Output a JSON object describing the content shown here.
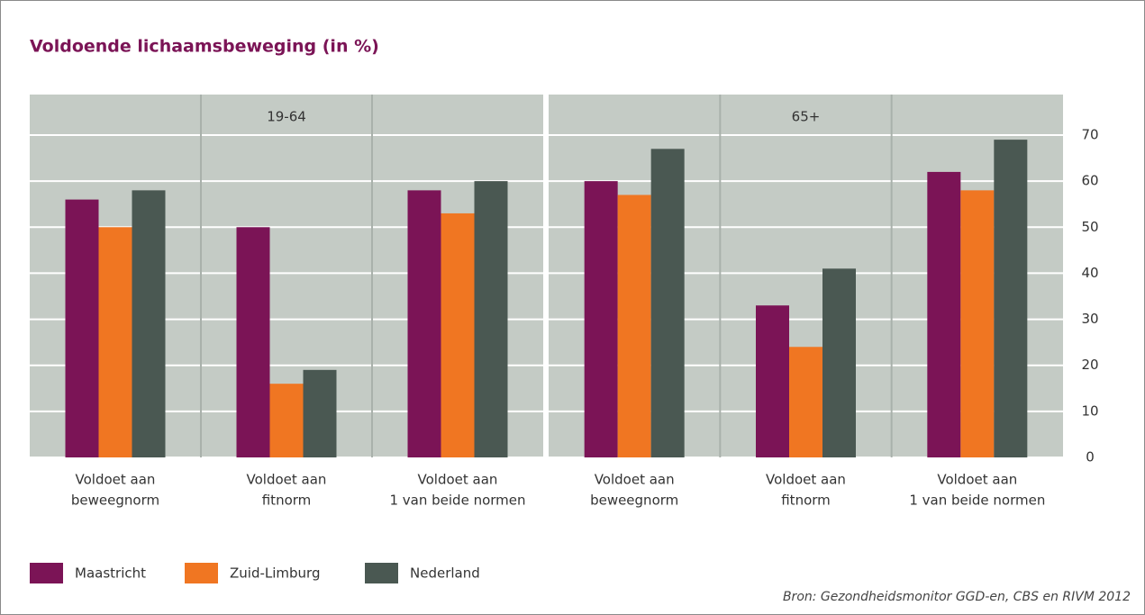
{
  "chart_data": {
    "type": "bar",
    "title": "Voldoende lichaamsbeweging (in %)",
    "groups": [
      "19-64",
      "65+"
    ],
    "categories": [
      [
        "Voldoet aan",
        "beweegnorm"
      ],
      [
        "Voldoet aan",
        "fitnorm"
      ],
      [
        "Voldoet aan",
        "1 van beide normen"
      ],
      [
        "Voldoet aan",
        "beweegnorm"
      ],
      [
        "Voldoet aan",
        "fitnorm"
      ],
      [
        "Voldoet aan",
        "1 van beide normen"
      ]
    ],
    "series": [
      {
        "name": "Maastricht",
        "color": "#7b1456",
        "values": [
          56,
          50,
          58,
          60,
          33,
          62
        ]
      },
      {
        "name": "Zuid-Limburg",
        "color": "#f07622",
        "values": [
          50,
          16,
          53,
          57,
          24,
          58
        ]
      },
      {
        "name": "Nederland",
        "color": "#4a5852",
        "values": [
          58,
          19,
          60,
          67,
          41,
          69
        ]
      }
    ],
    "ylim": [
      0,
      70
    ],
    "yticks": [
      0,
      10,
      20,
      30,
      40,
      50,
      60,
      70
    ],
    "grid": true,
    "source": "Bron: Gezondheidsmonitor GGD-en, CBS en RIVM 2012"
  }
}
